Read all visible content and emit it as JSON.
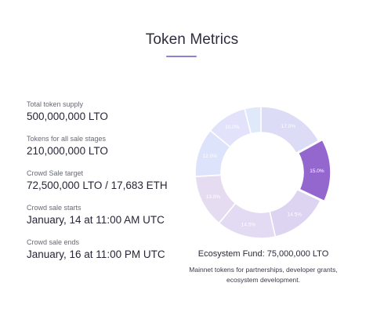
{
  "page": {
    "title": "Token Metrics"
  },
  "metrics": [
    {
      "label": "Total token supply",
      "value": "500,000,000 LTO"
    },
    {
      "label": "Tokens for all sale stages",
      "value": "210,000,000 LTO"
    },
    {
      "label": "Crowd Sale target",
      "value": "72,500,000 LTO / 17,683 ETH"
    },
    {
      "label": "Crowd sale starts",
      "value": "January, 14 at 11:00 AM UTC"
    },
    {
      "label": "Crowd sale ends",
      "value": "January, 16 at 11:00 PM UTC"
    }
  ],
  "chart_data": {
    "type": "pie",
    "donut": true,
    "slices": [
      {
        "label": "17.0%",
        "value": 17.0,
        "color": "#dcdcf6",
        "highlighted": false
      },
      {
        "label": "15.0%",
        "value": 15.0,
        "color": "#9467cf",
        "highlighted": true
      },
      {
        "label": "14.5%",
        "value": 14.5,
        "color": "#dcd4f0",
        "highlighted": false
      },
      {
        "label": "14.5%",
        "value": 14.5,
        "color": "#e3daf3",
        "highlighted": false
      },
      {
        "label": "13.0%",
        "value": 13.0,
        "color": "#e6dcf2",
        "highlighted": false
      },
      {
        "label": "12.0%",
        "value": 12.0,
        "color": "#dde3fa",
        "highlighted": false
      },
      {
        "label": "10.0%",
        "value": 10.0,
        "color": "#e2e3fa",
        "highlighted": false
      },
      {
        "label": "",
        "value": 4.0,
        "color": "#dfe9fa",
        "highlighted": false
      }
    ]
  },
  "legend": {
    "title": "Ecosystem Fund: 75,000,000 LTO",
    "description": "Mainnet tokens for partnerships, developer grants, ecosystem development."
  }
}
